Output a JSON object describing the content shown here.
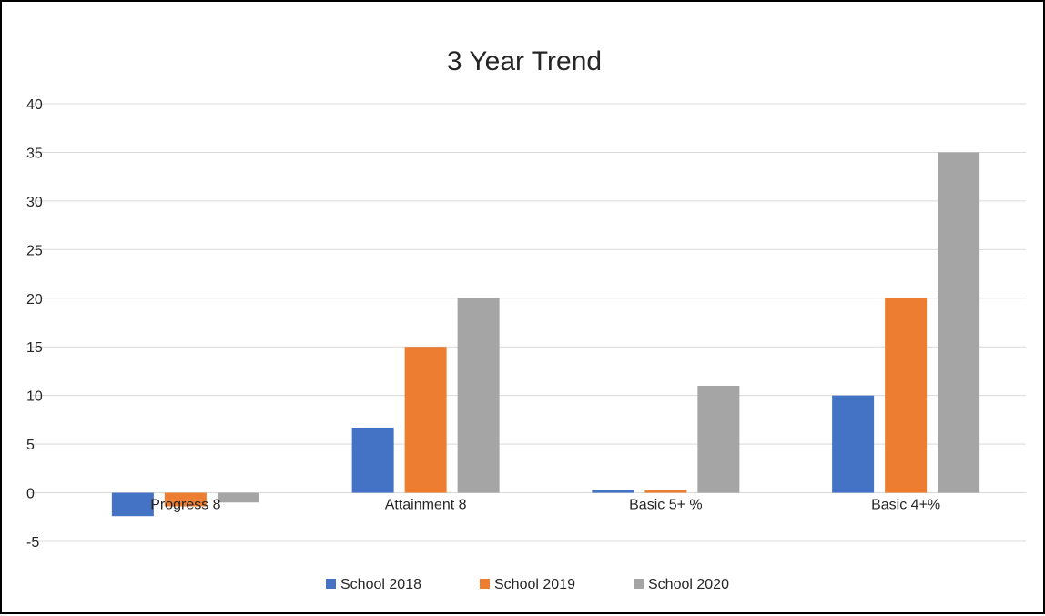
{
  "chart_data": {
    "type": "bar",
    "title": "3 Year Trend",
    "xlabel": "",
    "ylabel": "",
    "categories": [
      "Progress 8",
      "Attainment 8",
      "Basic 5+ %",
      "Basic 4+%"
    ],
    "series": [
      {
        "name": "School 2018",
        "color": "#4472C4",
        "values": [
          -2.4,
          6.7,
          0.3,
          10
        ]
      },
      {
        "name": "School 2019",
        "color": "#ED7D31",
        "values": [
          -1.4,
          15,
          0.3,
          20
        ]
      },
      {
        "name": "School 2020",
        "color": "#A5A5A5",
        "values": [
          -1.0,
          20,
          11,
          35
        ]
      }
    ],
    "ylim": [
      -5,
      40
    ],
    "yticks": [
      -5,
      0,
      5,
      10,
      15,
      20,
      25,
      30,
      35,
      40
    ],
    "grid": true,
    "legend_position": "bottom"
  }
}
